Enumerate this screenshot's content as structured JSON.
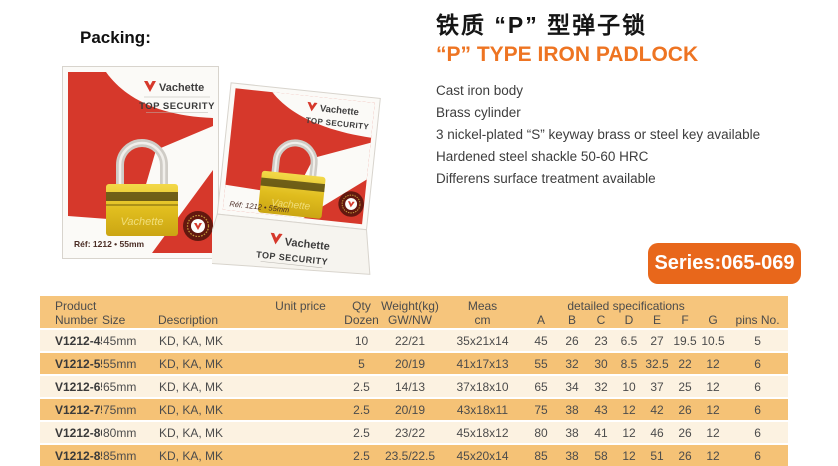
{
  "page": {
    "packing_label": "Packing:"
  },
  "product": {
    "title_zh": "铁质 “P” 型弹子锁",
    "title_en": "“P” TYPE IRON PADLOCK",
    "features": [
      "Cast iron body",
      "Brass cylinder",
      "3 nickel-plated “S” keyway brass or steel key available",
      "Hardened steel shackle 50-60 HRC",
      "Differens surface treatment available"
    ],
    "series_badge": "Series:065-069"
  },
  "box": {
    "brand": "Vachette",
    "tagline": "TOP SECURITY",
    "ref_text": "Réf: 1212 • 55mm"
  },
  "colors": {
    "accent_orange": "#ee7422",
    "badge_orange": "#e8671b",
    "box_red": "#d6382b",
    "brass_yellow": "#e5c327",
    "table_header_bg": "#f6c57c",
    "table_row_bg": "#fcf2e1",
    "table_row_alt_bg": "#f5c276"
  },
  "table": {
    "head": {
      "product_l1": "Product",
      "product_l2": "Number",
      "size": "Size",
      "description": "Description",
      "unit_price": "Unit price",
      "qty_l1": "Qty",
      "qty_l2": "Dozen",
      "weight_l1": "Weight(kg)",
      "weight_l2": "GW/NW",
      "meas_l1": "Meas",
      "meas_l2": "cm",
      "group": "detailed specifications",
      "spec_cols": [
        "A",
        "B",
        "C",
        "D",
        "E",
        "F",
        "G"
      ],
      "pins": "pins No."
    },
    "rows": [
      {
        "product": "V1212-45",
        "size": "45mm",
        "description": "KD, KA, MK",
        "unit_price": "",
        "qty": "10",
        "weight": "22/21",
        "meas": "35x21x14",
        "specs": [
          "45",
          "26",
          "23",
          "6.5",
          "27",
          "19.5",
          "10.5"
        ],
        "pins": "5"
      },
      {
        "product": "V1212-55",
        "size": "55mm",
        "description": "KD, KA, MK",
        "unit_price": "",
        "qty": "5",
        "weight": "20/19",
        "meas": "41x17x13",
        "specs": [
          "55",
          "32",
          "30",
          "8.5",
          "32.5",
          "22",
          "12"
        ],
        "pins": "6"
      },
      {
        "product": "V1212-65",
        "size": "65mm",
        "description": "KD, KA, MK",
        "unit_price": "",
        "qty": "2.5",
        "weight": "14/13",
        "meas": "37x18x10",
        "specs": [
          "65",
          "34",
          "32",
          "10",
          "37",
          "25",
          "12"
        ],
        "pins": "6"
      },
      {
        "product": "V1212-75",
        "size": "75mm",
        "description": "KD, KA, MK",
        "unit_price": "",
        "qty": "2.5",
        "weight": "20/19",
        "meas": "43x18x11",
        "specs": [
          "75",
          "38",
          "43",
          "12",
          "42",
          "26",
          "12"
        ],
        "pins": "6"
      },
      {
        "product": "V1212-80",
        "size": "80mm",
        "description": "KD, KA, MK",
        "unit_price": "",
        "qty": "2.5",
        "weight": "23/22",
        "meas": "45x18x12",
        "specs": [
          "80",
          "38",
          "41",
          "12",
          "46",
          "26",
          "12"
        ],
        "pins": "6"
      },
      {
        "product": "V1212-85",
        "size": "85mm",
        "description": "KD, KA, MK",
        "unit_price": "",
        "qty": "2.5",
        "weight": "23.5/22.5",
        "meas": "45x20x14",
        "specs": [
          "85",
          "38",
          "58",
          "12",
          "51",
          "26",
          "12"
        ],
        "pins": "6"
      }
    ]
  }
}
